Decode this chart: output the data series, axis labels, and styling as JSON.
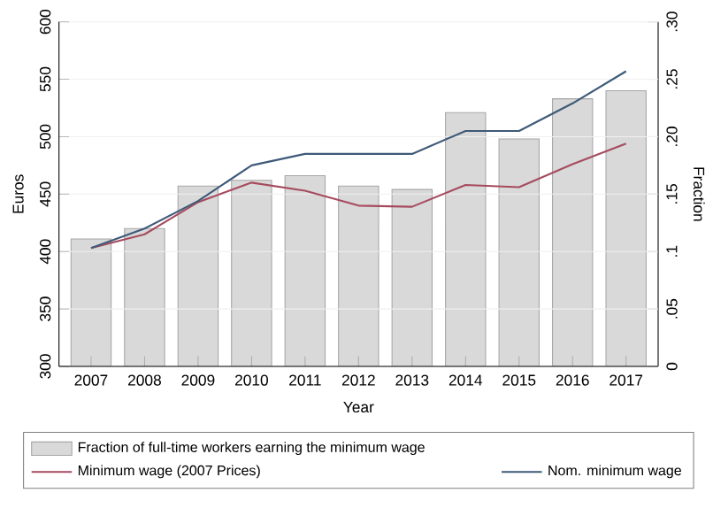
{
  "chart_data": {
    "type": "bar",
    "xlabel": "Year",
    "ylabel": "Euros",
    "y2label": "Fraction",
    "categories": [
      "2007",
      "2008",
      "2009",
      "2010",
      "2011",
      "2012",
      "2013",
      "2014",
      "2015",
      "2016",
      "2017"
    ],
    "series": [
      {
        "name": "Fraction of full-time workers earning the minimum wage",
        "type": "bar",
        "axis": "y2",
        "color": "#d9d9d9",
        "values": [
          0.111,
          0.12,
          0.157,
          0.162,
          0.166,
          0.157,
          0.154,
          0.221,
          0.198,
          0.233,
          0.24
        ]
      },
      {
        "name": "Minimum wage (2007 Prices)",
        "type": "line",
        "color": "#a64b5f",
        "values": [
          403,
          415,
          443,
          460,
          453,
          440,
          439,
          458,
          456,
          476,
          494
        ]
      },
      {
        "name": "Nom. minimum wage",
        "type": "line",
        "color": "#3e5a78",
        "values": [
          403,
          420,
          444,
          475,
          485,
          485,
          485,
          505,
          505,
          529,
          557
        ]
      }
    ],
    "ylim": [
      300,
      600
    ],
    "yticks": [
      300,
      350,
      400,
      450,
      500,
      550,
      600
    ],
    "y2lim": [
      0,
      0.3
    ],
    "y2ticks": [
      0,
      {
        "value": 0.05,
        "label": ".05"
      },
      {
        "value": 0.1,
        "label": ".1"
      },
      {
        "value": 0.15,
        "label": ".15"
      },
      {
        "value": 0.2,
        "label": ".20"
      },
      {
        "value": 0.25,
        "label": ".25"
      },
      {
        "value": 0.3,
        "label": ".30"
      }
    ],
    "grid": "y",
    "legend": "bottom",
    "marker": "none",
    "line_style": "solid"
  }
}
